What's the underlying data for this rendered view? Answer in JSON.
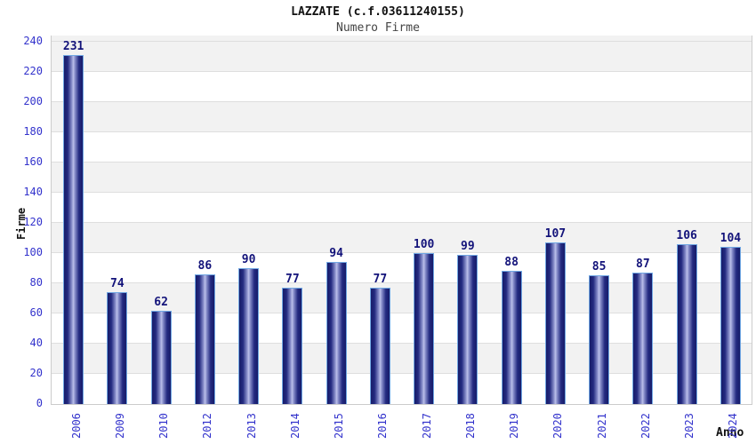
{
  "chart_data": {
    "type": "bar",
    "title": "LAZZATE (c.f.03611240155)",
    "subtitle": "Numero Firme",
    "xlabel": "Anno",
    "ylabel": "Firme",
    "categories": [
      "2006",
      "2009",
      "2010",
      "2012",
      "2013",
      "2014",
      "2015",
      "2016",
      "2017",
      "2018",
      "2019",
      "2020",
      "2021",
      "2022",
      "2023",
      "2024"
    ],
    "values": [
      231,
      74,
      62,
      86,
      90,
      77,
      94,
      77,
      100,
      99,
      88,
      107,
      85,
      87,
      106,
      104
    ],
    "ylim": [
      0,
      240
    ],
    "ytick_step": 20,
    "grid": "horizontal-bands",
    "legend": "none",
    "colors": {
      "bar_dark": "#171c69",
      "bar_shade": "#232a80",
      "bar_mid": "#8a90cc",
      "bar_light": "#bcc0ea",
      "bar_outline": "#70a7e3",
      "value_label": "#13137a",
      "tick_label": "#3333cc",
      "band_gray": "#f2f2f2",
      "gridline": "#dedede",
      "plot_border": "#cccccc",
      "title": "#111111",
      "subtitle": "#444444"
    }
  }
}
